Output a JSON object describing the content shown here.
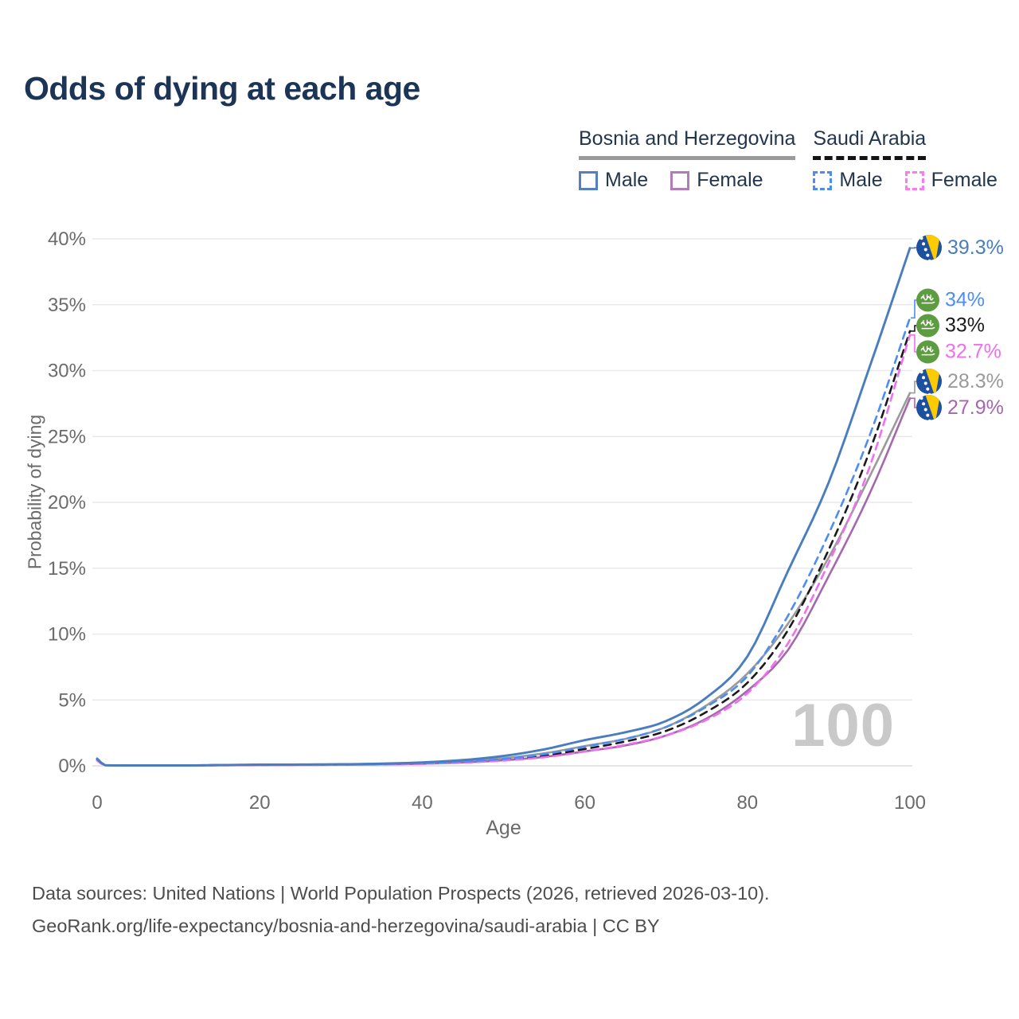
{
  "title": "Odds of dying at each age",
  "watermark_age": "100",
  "colors": {
    "title": "#1c3557",
    "bosnia_male": "#4a7dbe",
    "bosnia_female": "#a468ad",
    "bosnia_total": "#9a9a9a",
    "saudi_male": "#4d8df2",
    "saudi_female": "#f06ef0",
    "saudi_total": "#1a1a1a",
    "grid": "#e9e9e9",
    "bosnia_flag_blue": "#1e50a0",
    "bosnia_flag_yellow": "#fecb00",
    "saudi_flag_green": "#5d9c41"
  },
  "legend": {
    "groups": [
      {
        "name": "Bosnia and Herzegovina",
        "underline_style": "solid",
        "underline_color": "#9a9a9a",
        "items": [
          {
            "label": "Male",
            "color": "#5580c0",
            "style": "solid"
          },
          {
            "label": "Female",
            "color": "#b27cba",
            "style": "solid"
          }
        ]
      },
      {
        "name": "Saudi Arabia",
        "underline_style": "dashed",
        "underline_color": "#141414",
        "items": [
          {
            "label": "Male",
            "color": "#4d8df2",
            "style": "dashed"
          },
          {
            "label": "Female",
            "color": "#f97df0",
            "style": "dashed"
          }
        ]
      }
    ]
  },
  "chart_data": {
    "type": "line",
    "title": "Odds of dying at each age",
    "xlabel": "Age",
    "ylabel": "Probability of dying",
    "xlim": [
      0,
      100
    ],
    "ylim": [
      0,
      40
    ],
    "x_ticks": [
      0,
      20,
      40,
      60,
      80,
      100
    ],
    "y_ticks": [
      0,
      5,
      10,
      15,
      20,
      25,
      30,
      35,
      40
    ],
    "y_tick_suffix": "%",
    "grid": true,
    "legend_position": "top-right",
    "x": [
      0,
      1,
      5,
      10,
      15,
      20,
      25,
      30,
      35,
      40,
      45,
      50,
      55,
      60,
      65,
      70,
      75,
      80,
      85,
      90,
      95,
      100
    ],
    "series": [
      {
        "name": "Bosnia and Herzegovina — Total",
        "flag": "ba",
        "color": "#9a9a9a",
        "dash": "solid",
        "end_label": "28.3%",
        "values": [
          0.5,
          0.04,
          0.02,
          0.02,
          0.05,
          0.08,
          0.09,
          0.1,
          0.14,
          0.21,
          0.35,
          0.58,
          0.95,
          1.5,
          2.05,
          2.95,
          4.6,
          7.0,
          10.8,
          15.8,
          21.9,
          28.3
        ]
      },
      {
        "name": "Bosnia and Herzegovina — Female",
        "flag": "ba",
        "color": "#a468ad",
        "dash": "solid",
        "end_label": "27.9%",
        "values": [
          0.45,
          0.04,
          0.02,
          0.02,
          0.04,
          0.06,
          0.07,
          0.08,
          0.11,
          0.16,
          0.26,
          0.42,
          0.68,
          1.1,
          1.55,
          2.3,
          3.6,
          5.7,
          8.8,
          14.4,
          20.6,
          27.9
        ]
      },
      {
        "name": "Saudi Arabia — Total",
        "flag": "sa",
        "color": "#1a1a1a",
        "dash": "dashed",
        "end_label": "33%",
        "values": [
          0.45,
          0.04,
          0.02,
          0.02,
          0.05,
          0.07,
          0.09,
          0.1,
          0.13,
          0.18,
          0.28,
          0.46,
          0.78,
          1.28,
          1.85,
          2.65,
          4.1,
          6.3,
          10.3,
          16.4,
          23.8,
          33.0
        ]
      },
      {
        "name": "Saudi Arabia — Female",
        "flag": "sa",
        "color": "#f06ef0",
        "dash": "dashed",
        "end_label": "32.7%",
        "values": [
          0.4,
          0.03,
          0.02,
          0.02,
          0.04,
          0.06,
          0.07,
          0.08,
          0.11,
          0.16,
          0.24,
          0.4,
          0.65,
          1.08,
          1.6,
          2.3,
          3.5,
          5.5,
          9.3,
          15.4,
          22.6,
          32.7
        ]
      },
      {
        "name": "Saudi Arabia — Male",
        "flag": "sa",
        "color": "#4d8df2",
        "dash": "dashed",
        "end_label": "34%",
        "values": [
          0.5,
          0.04,
          0.02,
          0.03,
          0.06,
          0.09,
          0.1,
          0.11,
          0.14,
          0.21,
          0.32,
          0.52,
          0.88,
          1.45,
          2.05,
          2.95,
          4.5,
          6.8,
          11.4,
          17.6,
          25.0,
          34.0
        ]
      },
      {
        "name": "Bosnia and Herzegovina — Male",
        "flag": "ba",
        "color": "#4a7dbe",
        "dash": "solid",
        "end_label": "39.3%",
        "values": [
          0.55,
          0.05,
          0.03,
          0.03,
          0.06,
          0.09,
          0.1,
          0.12,
          0.17,
          0.26,
          0.44,
          0.75,
          1.25,
          1.95,
          2.55,
          3.4,
          5.2,
          8.3,
          14.8,
          21.5,
          30.2,
          39.3
        ]
      }
    ]
  },
  "footer": {
    "line1": "Data sources: United Nations | World Population Prospects (2026, retrieved 2026-03-10).",
    "line2": "GeoRank.org/life-expectancy/bosnia-and-herzegovina/saudi-arabia | CC BY"
  }
}
